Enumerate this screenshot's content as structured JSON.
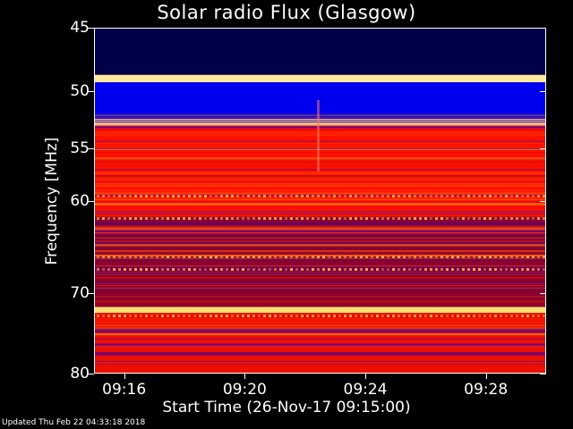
{
  "chart_data": {
    "type": "heatmap",
    "title": "Solar radio Flux (Glasgow)",
    "ylabel": "Frequency [MHz]",
    "xlabel": "Start Time (26-Nov-17 09:15:00)",
    "y_scale": "log",
    "ylim": [
      45,
      80
    ],
    "y_ticks": [
      "45",
      "50",
      "55",
      "60",
      "70",
      "80"
    ],
    "y_tick_values": [
      45,
      50,
      55,
      60,
      70,
      80
    ],
    "x_ticks": [
      "09:16",
      "09:20",
      "09:24",
      "09:28"
    ],
    "x_tick_minutes": [
      1,
      5,
      9,
      13
    ],
    "xlim_minutes": [
      0,
      15
    ],
    "colormap": [
      "#000040",
      "#0000ff",
      "#ff0000",
      "#ffff80"
    ],
    "bands": [
      {
        "from": 45,
        "to": 48.6,
        "color": "#000048"
      },
      {
        "from": 48.6,
        "to": 49.2,
        "color": "#ffe8a0"
      },
      {
        "from": 49.2,
        "to": 52.3,
        "color": "#0000ee"
      },
      {
        "from": 52.3,
        "to": 52.9,
        "color": "#ffd080"
      },
      {
        "from": 52.9,
        "to": 61.5,
        "color": "#ff1000"
      },
      {
        "from": 61.5,
        "to": 71.5,
        "color": "#8a0030"
      },
      {
        "from": 71.5,
        "to": 72.2,
        "color": "#ffe070"
      },
      {
        "from": 72.2,
        "to": 80,
        "color": "#ee1000"
      }
    ]
  },
  "footer": {
    "updated": "Updated Thu Feb 22 04:33:18 2018"
  }
}
